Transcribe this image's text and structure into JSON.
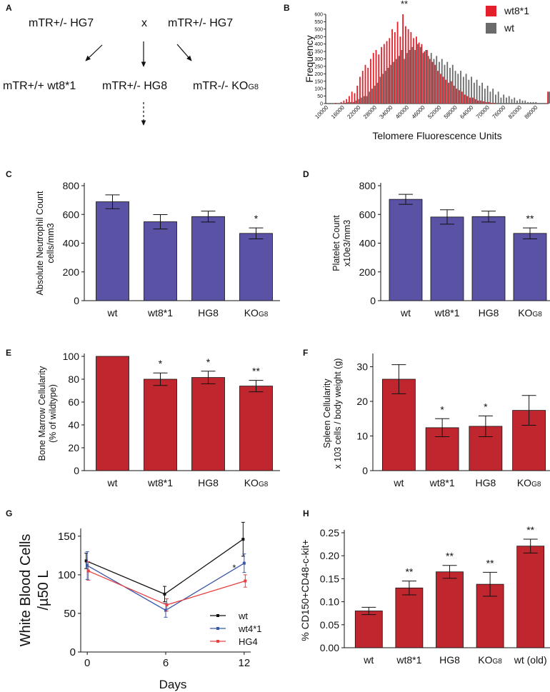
{
  "panels": {
    "A": "A",
    "B": "B",
    "C": "C",
    "D": "D",
    "E": "E",
    "F": "F",
    "G": "G",
    "H": "H"
  },
  "cross": {
    "parent_left": "mTR+/-  HG7",
    "cross_symbol": "x",
    "parent_right": "mTR+/- HG7",
    "child_left": "mTR+/+ wt8*1",
    "child_mid": "mTR+/- HG8",
    "child_right_main": "mTR-/- KO",
    "child_right_sub": "G8"
  },
  "colors": {
    "blue": "#5a52a4",
    "red": "#c0262d",
    "gray": "#6b6b6b",
    "hist_red": "#e4202a"
  },
  "chart_data": [
    {
      "panel": "B",
      "type": "bar",
      "title": "",
      "xlabel": "Telomere Fluorescence Units",
      "ylabel": "Frequency",
      "ylim": [
        0,
        60
      ],
      "yticks": [
        "0",
        "50",
        "100",
        "150",
        "200",
        "250",
        "300",
        "350",
        "400",
        "450",
        "500",
        "550",
        "600"
      ],
      "ytick_values": [
        0,
        5,
        10,
        15,
        20,
        25,
        30,
        35,
        40,
        45,
        50,
        55,
        60
      ],
      "xticks": [
        "10000",
        "16000",
        "22000",
        "28000",
        "34000",
        "40000",
        "46000",
        "52000",
        "58000",
        "64000",
        "70000",
        "76000",
        "82000",
        "88000"
      ],
      "xlim": [
        10000,
        93000
      ],
      "annotation": "**",
      "legend": [
        {
          "name": "wt8*1",
          "color": "#e4202a"
        },
        {
          "name": "wt",
          "color": "#6b6b6b"
        }
      ],
      "legend_position": "top-right",
      "series": [
        {
          "name": "wt8*1",
          "color": "#e4202a",
          "x": [
            11000,
            12000,
            13000,
            14000,
            15000,
            16000,
            17000,
            18000,
            19000,
            20000,
            21000,
            22000,
            23000,
            24000,
            25000,
            26000,
            27000,
            28000,
            29000,
            30000,
            31000,
            32000,
            33000,
            34000,
            35000,
            36000,
            37000,
            38000,
            39000,
            40000,
            41000,
            42000,
            43000,
            44000,
            45000,
            46000,
            47000,
            48000,
            49000,
            50000,
            51000,
            52000,
            53000,
            54000,
            55000,
            56000,
            57000,
            58000,
            59000,
            60000,
            61000,
            62000,
            63000,
            64000,
            65000,
            66000,
            67000,
            68000,
            69000,
            70000,
            71000,
            72000,
            73000,
            74000,
            75000,
            76000,
            77000,
            78000,
            79000,
            80000,
            81000,
            82000,
            83000,
            84000,
            85000,
            86000,
            87000,
            88000,
            89000,
            90000,
            91000,
            92000,
            93000
          ],
          "values": [
            0,
            0,
            0,
            0.5,
            0,
            1,
            2,
            3,
            5,
            8,
            7,
            12,
            18,
            22,
            26,
            24,
            30,
            34,
            36,
            33,
            38,
            40,
            42,
            44,
            50,
            48,
            55,
            45,
            60,
            52,
            50,
            48,
            44,
            45,
            41,
            40,
            35,
            36,
            30,
            28,
            26,
            22,
            20,
            18,
            16,
            14,
            15,
            12,
            10,
            9,
            8,
            6,
            5,
            4,
            4,
            3,
            2,
            2,
            1.5,
            1,
            1,
            0.5,
            0.5,
            0,
            0,
            0,
            0,
            0,
            0,
            0,
            0,
            0,
            0,
            0,
            0,
            0,
            0,
            0,
            0,
            0,
            0,
            0,
            8
          ]
        },
        {
          "name": "wt",
          "color": "#6b6b6b",
          "x": [
            11000,
            12000,
            13000,
            14000,
            15000,
            16000,
            17000,
            18000,
            19000,
            20000,
            21000,
            22000,
            23000,
            24000,
            25000,
            26000,
            27000,
            28000,
            29000,
            30000,
            31000,
            32000,
            33000,
            34000,
            35000,
            36000,
            37000,
            38000,
            39000,
            40000,
            41000,
            42000,
            43000,
            44000,
            45000,
            46000,
            47000,
            48000,
            49000,
            50000,
            51000,
            52000,
            53000,
            54000,
            55000,
            56000,
            57000,
            58000,
            59000,
            60000,
            61000,
            62000,
            63000,
            64000,
            65000,
            66000,
            67000,
            68000,
            69000,
            70000,
            71000,
            72000,
            73000,
            74000,
            75000,
            76000,
            77000,
            78000,
            79000,
            80000,
            81000,
            82000,
            83000,
            84000,
            85000,
            86000,
            87000,
            88000,
            89000,
            90000,
            91000,
            92000,
            93000
          ],
          "values": [
            0,
            0,
            0,
            0,
            0,
            0,
            0.5,
            1,
            1,
            1,
            2,
            3,
            4,
            5,
            5,
            8,
            10,
            12,
            14,
            18,
            20,
            22,
            24,
            26,
            28,
            30,
            32,
            36,
            30,
            34,
            36,
            38,
            36,
            40,
            38,
            34,
            36,
            32,
            34,
            30,
            32,
            28,
            30,
            26,
            28,
            24,
            26,
            22,
            20,
            22,
            18,
            20,
            16,
            18,
            14,
            16,
            12,
            14,
            10,
            12,
            8,
            10,
            6,
            8,
            4,
            6,
            4,
            5,
            3,
            4,
            2,
            3,
            2,
            2,
            1,
            1,
            1,
            1,
            0,
            0,
            0,
            0,
            8
          ]
        }
      ]
    },
    {
      "panel": "C",
      "type": "bar",
      "title": "",
      "ylabel": "Absolute Neutrophil Count",
      "ylabel2": "cells/mm3",
      "categories": [
        "wt",
        "wt8*1",
        "HG8",
        "KO"
      ],
      "category_subs": [
        "",
        "",
        "",
        "G8"
      ],
      "values": [
        688,
        549,
        585,
        468
      ],
      "errors": [
        48,
        50,
        38,
        38
      ],
      "significance": [
        "",
        "",
        "",
        "*"
      ],
      "ylim": [
        0,
        800
      ],
      "yticks": [
        "0",
        "200",
        "400",
        "600",
        "800"
      ],
      "color": "#5a52a4"
    },
    {
      "panel": "D",
      "type": "bar",
      "title": "",
      "ylabel": "Platelet Count",
      "ylabel2": "x10e3/mm3",
      "categories": [
        "wt",
        "wt8*1",
        "HG8",
        "KO"
      ],
      "category_subs": [
        "",
        "",
        "",
        "G8"
      ],
      "values": [
        705,
        582,
        585,
        468
      ],
      "errors": [
        35,
        50,
        38,
        38
      ],
      "significance": [
        "",
        "",
        "",
        "**"
      ],
      "ylim": [
        0,
        800
      ],
      "yticks": [
        "0",
        "200",
        "400",
        "600",
        "800"
      ],
      "color": "#5a52a4"
    },
    {
      "panel": "E",
      "type": "bar",
      "title": "",
      "ylabel": "Bone Marrow Cellularity",
      "ylabel2": "(% of wildtype)",
      "categories": [
        "wt",
        "wt8*1",
        "HG8",
        "KO"
      ],
      "category_subs": [
        "",
        "",
        "",
        "G8"
      ],
      "values": [
        100,
        80,
        81.5,
        74
      ],
      "errors": [
        0,
        5.5,
        5.5,
        5
      ],
      "significance": [
        "",
        "*",
        "*",
        "**"
      ],
      "ylim": [
        0,
        100
      ],
      "yticks": [
        "0",
        "20",
        "40",
        "60",
        "80",
        "100"
      ],
      "color": "#c0262d"
    },
    {
      "panel": "F",
      "type": "bar",
      "title": "",
      "ylabel": "Spleen Cellularity",
      "ylabel2": "x 103 cells / body weight (g)",
      "categories": [
        "wt",
        "wt8*1",
        "HG8",
        "KO"
      ],
      "category_subs": [
        "",
        "",
        "",
        "G8"
      ],
      "values": [
        26.4,
        12.4,
        12.8,
        17.4
      ],
      "errors": [
        4.2,
        2.6,
        3.0,
        4.3
      ],
      "significance": [
        "",
        "*",
        "*",
        ""
      ],
      "ylim": [
        0,
        33
      ],
      "yticks": [
        "0",
        "10",
        "20",
        "30"
      ],
      "color": "#c0262d"
    },
    {
      "panel": "G",
      "type": "line",
      "title": "",
      "xlabel": "Days",
      "ylabel": "White Blood Cells",
      "ylabel2": "/µ50 L",
      "x": [
        0,
        6,
        12
      ],
      "xticks": [
        "0",
        "6",
        "12"
      ],
      "xlim": [
        -0.5,
        12.5
      ],
      "ylim": [
        0,
        160
      ],
      "yticks": [
        "0",
        "50",
        "100",
        "150"
      ],
      "annotation": "*",
      "legend_position": "bottom-right",
      "series": [
        {
          "name": "wt",
          "color": "#111111",
          "values": [
            118,
            75,
            146
          ],
          "errors": [
            10,
            10,
            22
          ]
        },
        {
          "name": "wt4*1",
          "color": "#3a56a8",
          "values": [
            112,
            54,
            115
          ],
          "errors": [
            18,
            9,
            12
          ]
        },
        {
          "name": "HG4",
          "color": "#e84040",
          "values": [
            105,
            61,
            92
          ],
          "errors": [
            12,
            8,
            8
          ]
        }
      ]
    },
    {
      "panel": "H",
      "type": "bar",
      "title": "",
      "ylabel": "% CD150+CD48-c-kit+",
      "categories": [
        "wt",
        "wt8*1",
        "HG8",
        "KO",
        "wt (old)"
      ],
      "category_subs": [
        "",
        "",
        "",
        "G8",
        ""
      ],
      "values": [
        0.08,
        0.13,
        0.165,
        0.138,
        0.221
      ],
      "errors": [
        0.008,
        0.015,
        0.014,
        0.026,
        0.015
      ],
      "significance": [
        "",
        "**",
        "**",
        "**",
        "**"
      ],
      "ylim": [
        0,
        0.25
      ],
      "yticks": [
        "0.00",
        "0.05",
        "0.10",
        "0.15",
        "0.20",
        "0.25"
      ],
      "color": "#c0262d"
    }
  ]
}
